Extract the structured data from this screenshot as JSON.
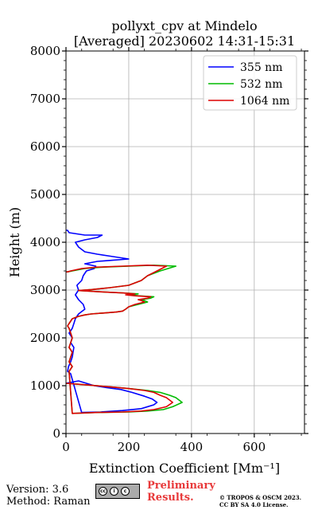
{
  "chart_data": {
    "type": "line",
    "title_line1": "pollyxt_cpv at Mindelo",
    "title_line2": "[Averaged] 20230602 14:31-15:31",
    "xlabel": "Extinction Coefficient [Mm⁻¹]",
    "ylabel": "Height (m)",
    "xlim": [
      0,
      760
    ],
    "ylim": [
      0,
      8000
    ],
    "xticks": [
      "0",
      "200",
      "400",
      "600"
    ],
    "xtick_values": [
      0,
      200,
      400,
      600
    ],
    "yticks": [
      "0",
      "1000",
      "2000",
      "3000",
      "4000",
      "5000",
      "6000",
      "7000",
      "8000"
    ],
    "ytick_values": [
      0,
      1000,
      2000,
      3000,
      4000,
      5000,
      6000,
      7000,
      8000
    ],
    "grid": true,
    "legend_position": "top-right",
    "series": [
      {
        "name": "355 nm",
        "color": "#0000ff",
        "x": [
          0,
          40,
          90,
          130,
          175,
          210,
          250,
          275,
          290,
          280,
          240,
          180,
          110,
          50,
          15,
          5,
          8,
          15,
          20,
          25,
          15,
          20,
          10,
          20,
          25,
          30,
          40,
          50,
          60,
          55,
          40,
          30,
          40,
          35,
          50,
          55,
          65,
          90,
          95,
          60,
          100,
          140,
          200,
          150,
          100,
          60,
          40,
          30,
          60,
          100,
          115,
          60,
          10,
          5,
          0
        ],
        "y": [
          1050,
          1100,
          1000,
          960,
          920,
          860,
          780,
          720,
          650,
          600,
          520,
          480,
          450,
          440,
          1250,
          1300,
          1400,
          1500,
          1600,
          1800,
          1900,
          2000,
          2100,
          2200,
          2300,
          2400,
          2500,
          2550,
          2600,
          2700,
          2800,
          2900,
          3000,
          3100,
          3200,
          3300,
          3400,
          3450,
          3500,
          3550,
          3600,
          3620,
          3650,
          3700,
          3750,
          3800,
          3900,
          4000,
          4050,
          4100,
          4150,
          4150,
          4200,
          4250,
          4250
        ]
      },
      {
        "name": "532 nm",
        "color": "#00bb00",
        "x": [
          0,
          60,
          150,
          200,
          260,
          300,
          330,
          350,
          370,
          340,
          310,
          260,
          200,
          100,
          20,
          10,
          20,
          10,
          15,
          20,
          10,
          15,
          20,
          15,
          10,
          5,
          10,
          15,
          20,
          40,
          60,
          80,
          120,
          160,
          180,
          190,
          200,
          230,
          260,
          250,
          240,
          270,
          280,
          230,
          200,
          230,
          180,
          120,
          40,
          80,
          140,
          200,
          240,
          260,
          300,
          350,
          280,
          200,
          120,
          60,
          20,
          5,
          0
        ],
        "y": [
          1050,
          1020,
          970,
          940,
          900,
          860,
          800,
          750,
          650,
          560,
          500,
          470,
          450,
          440,
          420,
          1300,
          1400,
          1500,
          1600,
          1700,
          1800,
          1900,
          2000,
          2100,
          2200,
          2250,
          2300,
          2350,
          2400,
          2450,
          2480,
          2500,
          2520,
          2540,
          2560,
          2600,
          2650,
          2700,
          2750,
          2780,
          2800,
          2830,
          2860,
          2880,
          2900,
          2920,
          2940,
          2960,
          2990,
          3010,
          3050,
          3100,
          3200,
          3300,
          3400,
          3500,
          3520,
          3500,
          3480,
          3450,
          3400,
          3380,
          3380
        ]
      },
      {
        "name": "1064 nm",
        "color": "#dd0000",
        "x": [
          0,
          60,
          150,
          200,
          250,
          280,
          300,
          320,
          340,
          320,
          280,
          240,
          180,
          100,
          20,
          10,
          20,
          10,
          15,
          20,
          10,
          15,
          20,
          15,
          10,
          5,
          10,
          15,
          20,
          40,
          60,
          80,
          120,
          160,
          180,
          190,
          200,
          220,
          250,
          240,
          230,
          260,
          270,
          220,
          190,
          220,
          180,
          120,
          40,
          80,
          140,
          200,
          240,
          260,
          290,
          320,
          260,
          180,
          100,
          50,
          15,
          5,
          0
        ],
        "y": [
          1050,
          1020,
          970,
          940,
          900,
          860,
          800,
          750,
          650,
          560,
          500,
          470,
          450,
          440,
          420,
          1300,
          1400,
          1500,
          1600,
          1700,
          1800,
          1900,
          2000,
          2100,
          2200,
          2250,
          2300,
          2350,
          2400,
          2450,
          2480,
          2500,
          2520,
          2540,
          2560,
          2600,
          2650,
          2700,
          2750,
          2780,
          2800,
          2830,
          2860,
          2880,
          2900,
          2920,
          2940,
          2960,
          2990,
          3010,
          3050,
          3100,
          3200,
          3300,
          3400,
          3500,
          3520,
          3500,
          3480,
          3450,
          3400,
          3380,
          3380
        ]
      }
    ]
  },
  "footer": {
    "version": "Version: 3.6",
    "method": "Method: Raman",
    "preliminary_line1": "Preliminary",
    "preliminary_line2": "Results.",
    "copyright_line1": "© TROPOS & OSCM 2023.",
    "copyright_line2": "CC BY SA 4.0 License."
  }
}
